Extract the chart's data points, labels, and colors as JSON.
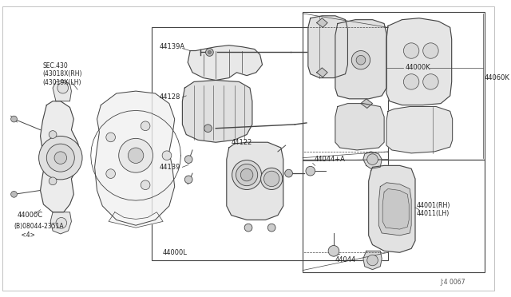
{
  "bg_color": "#ffffff",
  "line_color": "#444444",
  "text_color": "#222222",
  "gray_fill": "#e8e8e8",
  "dark_fill": "#cccccc",
  "labels": {
    "sec430": "SEC.430\n(43018X(RH)\n(43019X(LH)",
    "b08044": "(B)08044-2351A\n    <4>",
    "44000C": "44000C",
    "44139A": "44139A",
    "44128": "44128",
    "44139": "44139",
    "44122": "44122",
    "44044pA": "44044+A",
    "44000L": "44000L",
    "44044": "44044",
    "44000K": "44000K",
    "44060K": "44060K",
    "44001": "44001(RH)\n44011(LH)",
    "diagram_id": "J:4 0067"
  }
}
